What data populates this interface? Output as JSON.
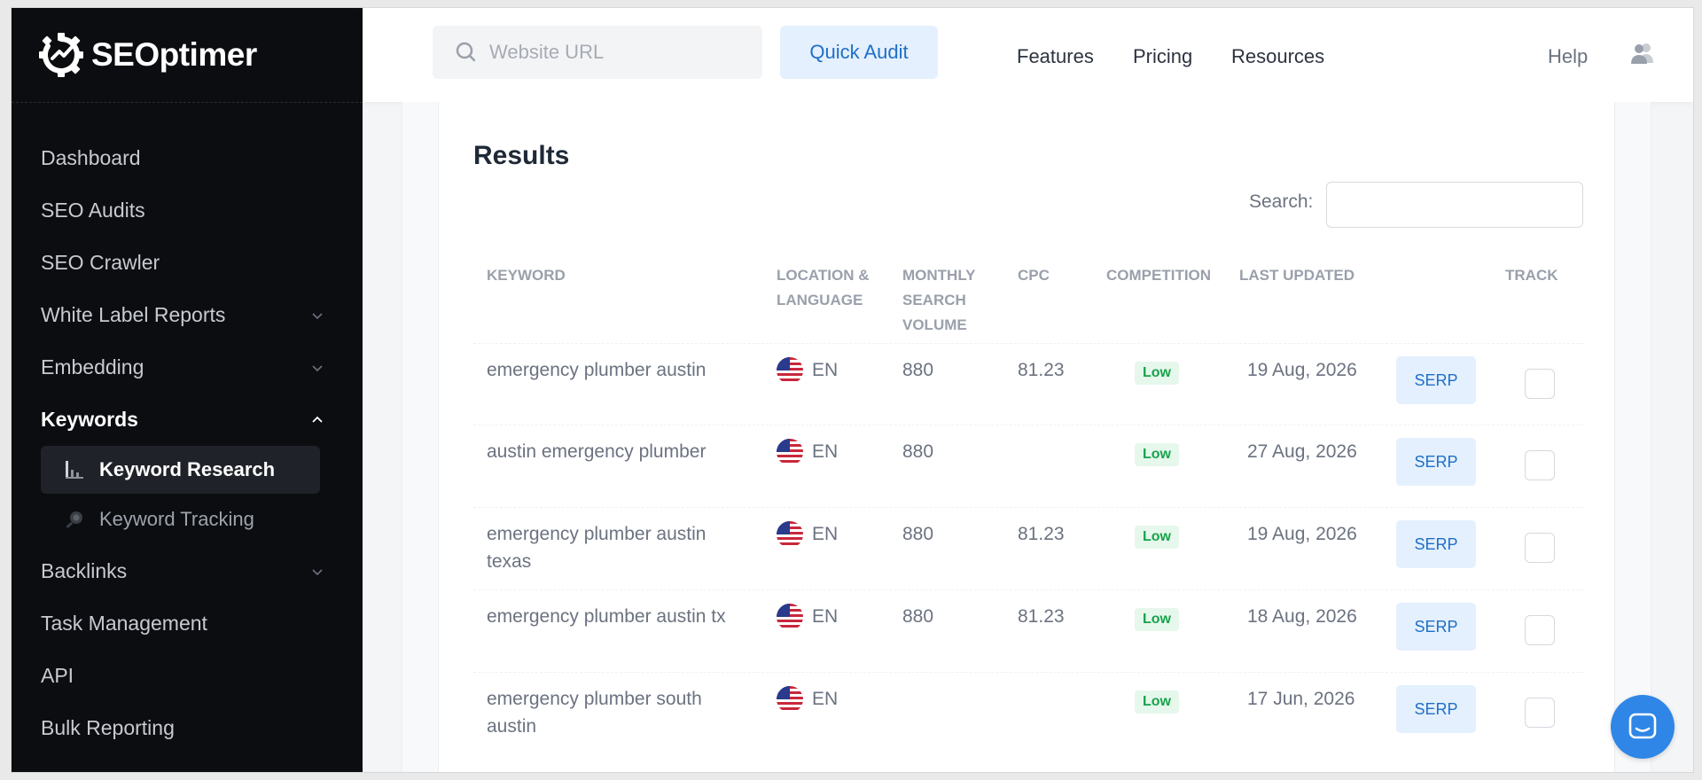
{
  "brand": {
    "name": "SEOptimer"
  },
  "sidebar": {
    "items": [
      {
        "label": "Dashboard"
      },
      {
        "label": "SEO Audits"
      },
      {
        "label": "SEO Crawler"
      },
      {
        "label": "White Label Reports"
      },
      {
        "label": "Embedding"
      },
      {
        "label": "Keywords"
      },
      {
        "label": "Backlinks"
      },
      {
        "label": "Task Management"
      },
      {
        "label": "API"
      },
      {
        "label": "Bulk Reporting"
      }
    ],
    "sub_items": [
      {
        "label": "Keyword Research"
      },
      {
        "label": "Keyword Tracking"
      }
    ]
  },
  "header": {
    "url_placeholder": "Website URL",
    "quick_audit": "Quick Audit",
    "features": "Features",
    "pricing": "Pricing",
    "resources": "Resources",
    "help": "Help"
  },
  "results": {
    "title": "Results",
    "search_label": "Search:",
    "columns": {
      "keyword": "KEYWORD",
      "location": "LOCATION & LANGUAGE",
      "volume": "MONTHLY SEARCH VOLUME",
      "cpc": "CPC",
      "competition": "COMPETITION",
      "last_updated": "LAST UPDATED",
      "track": "TRACK"
    },
    "rows": [
      {
        "keyword": "emergency plumber austin",
        "lang": "EN",
        "volume": "880",
        "cpc": "81.23",
        "competition": "Low",
        "date": "19 Aug, 2026",
        "serp": "SERP"
      },
      {
        "keyword": "austin emergency plumber",
        "lang": "EN",
        "volume": "880",
        "cpc": "",
        "competition": "Low",
        "date": "27 Aug, 2026",
        "serp": "SERP"
      },
      {
        "keyword": "emergency plumber austin texas",
        "lang": "EN",
        "volume": "880",
        "cpc": "81.23",
        "competition": "Low",
        "date": "19 Aug, 2026",
        "serp": "SERP"
      },
      {
        "keyword": "emergency plumber austin tx",
        "lang": "EN",
        "volume": "880",
        "cpc": "81.23",
        "competition": "Low",
        "date": "18 Aug, 2026",
        "serp": "SERP"
      },
      {
        "keyword": "emergency plumber south austin",
        "lang": "EN",
        "volume": "",
        "cpc": "",
        "competition": "Low",
        "date": "17 Jun, 2026",
        "serp": "SERP"
      }
    ]
  },
  "colors": {
    "sidebar_bg": "#0b0d10",
    "accent": "#1f6fc7",
    "accent_bg": "#e4f0fd",
    "low_badge": "#17a34a",
    "chat_button": "#2f86e6"
  },
  "icons": [
    "search-icon",
    "user-icon",
    "chevron-down-icon",
    "chevron-up-icon",
    "bar-chart-icon",
    "magnifier-icon",
    "us-flag-icon",
    "chat-icon"
  ]
}
